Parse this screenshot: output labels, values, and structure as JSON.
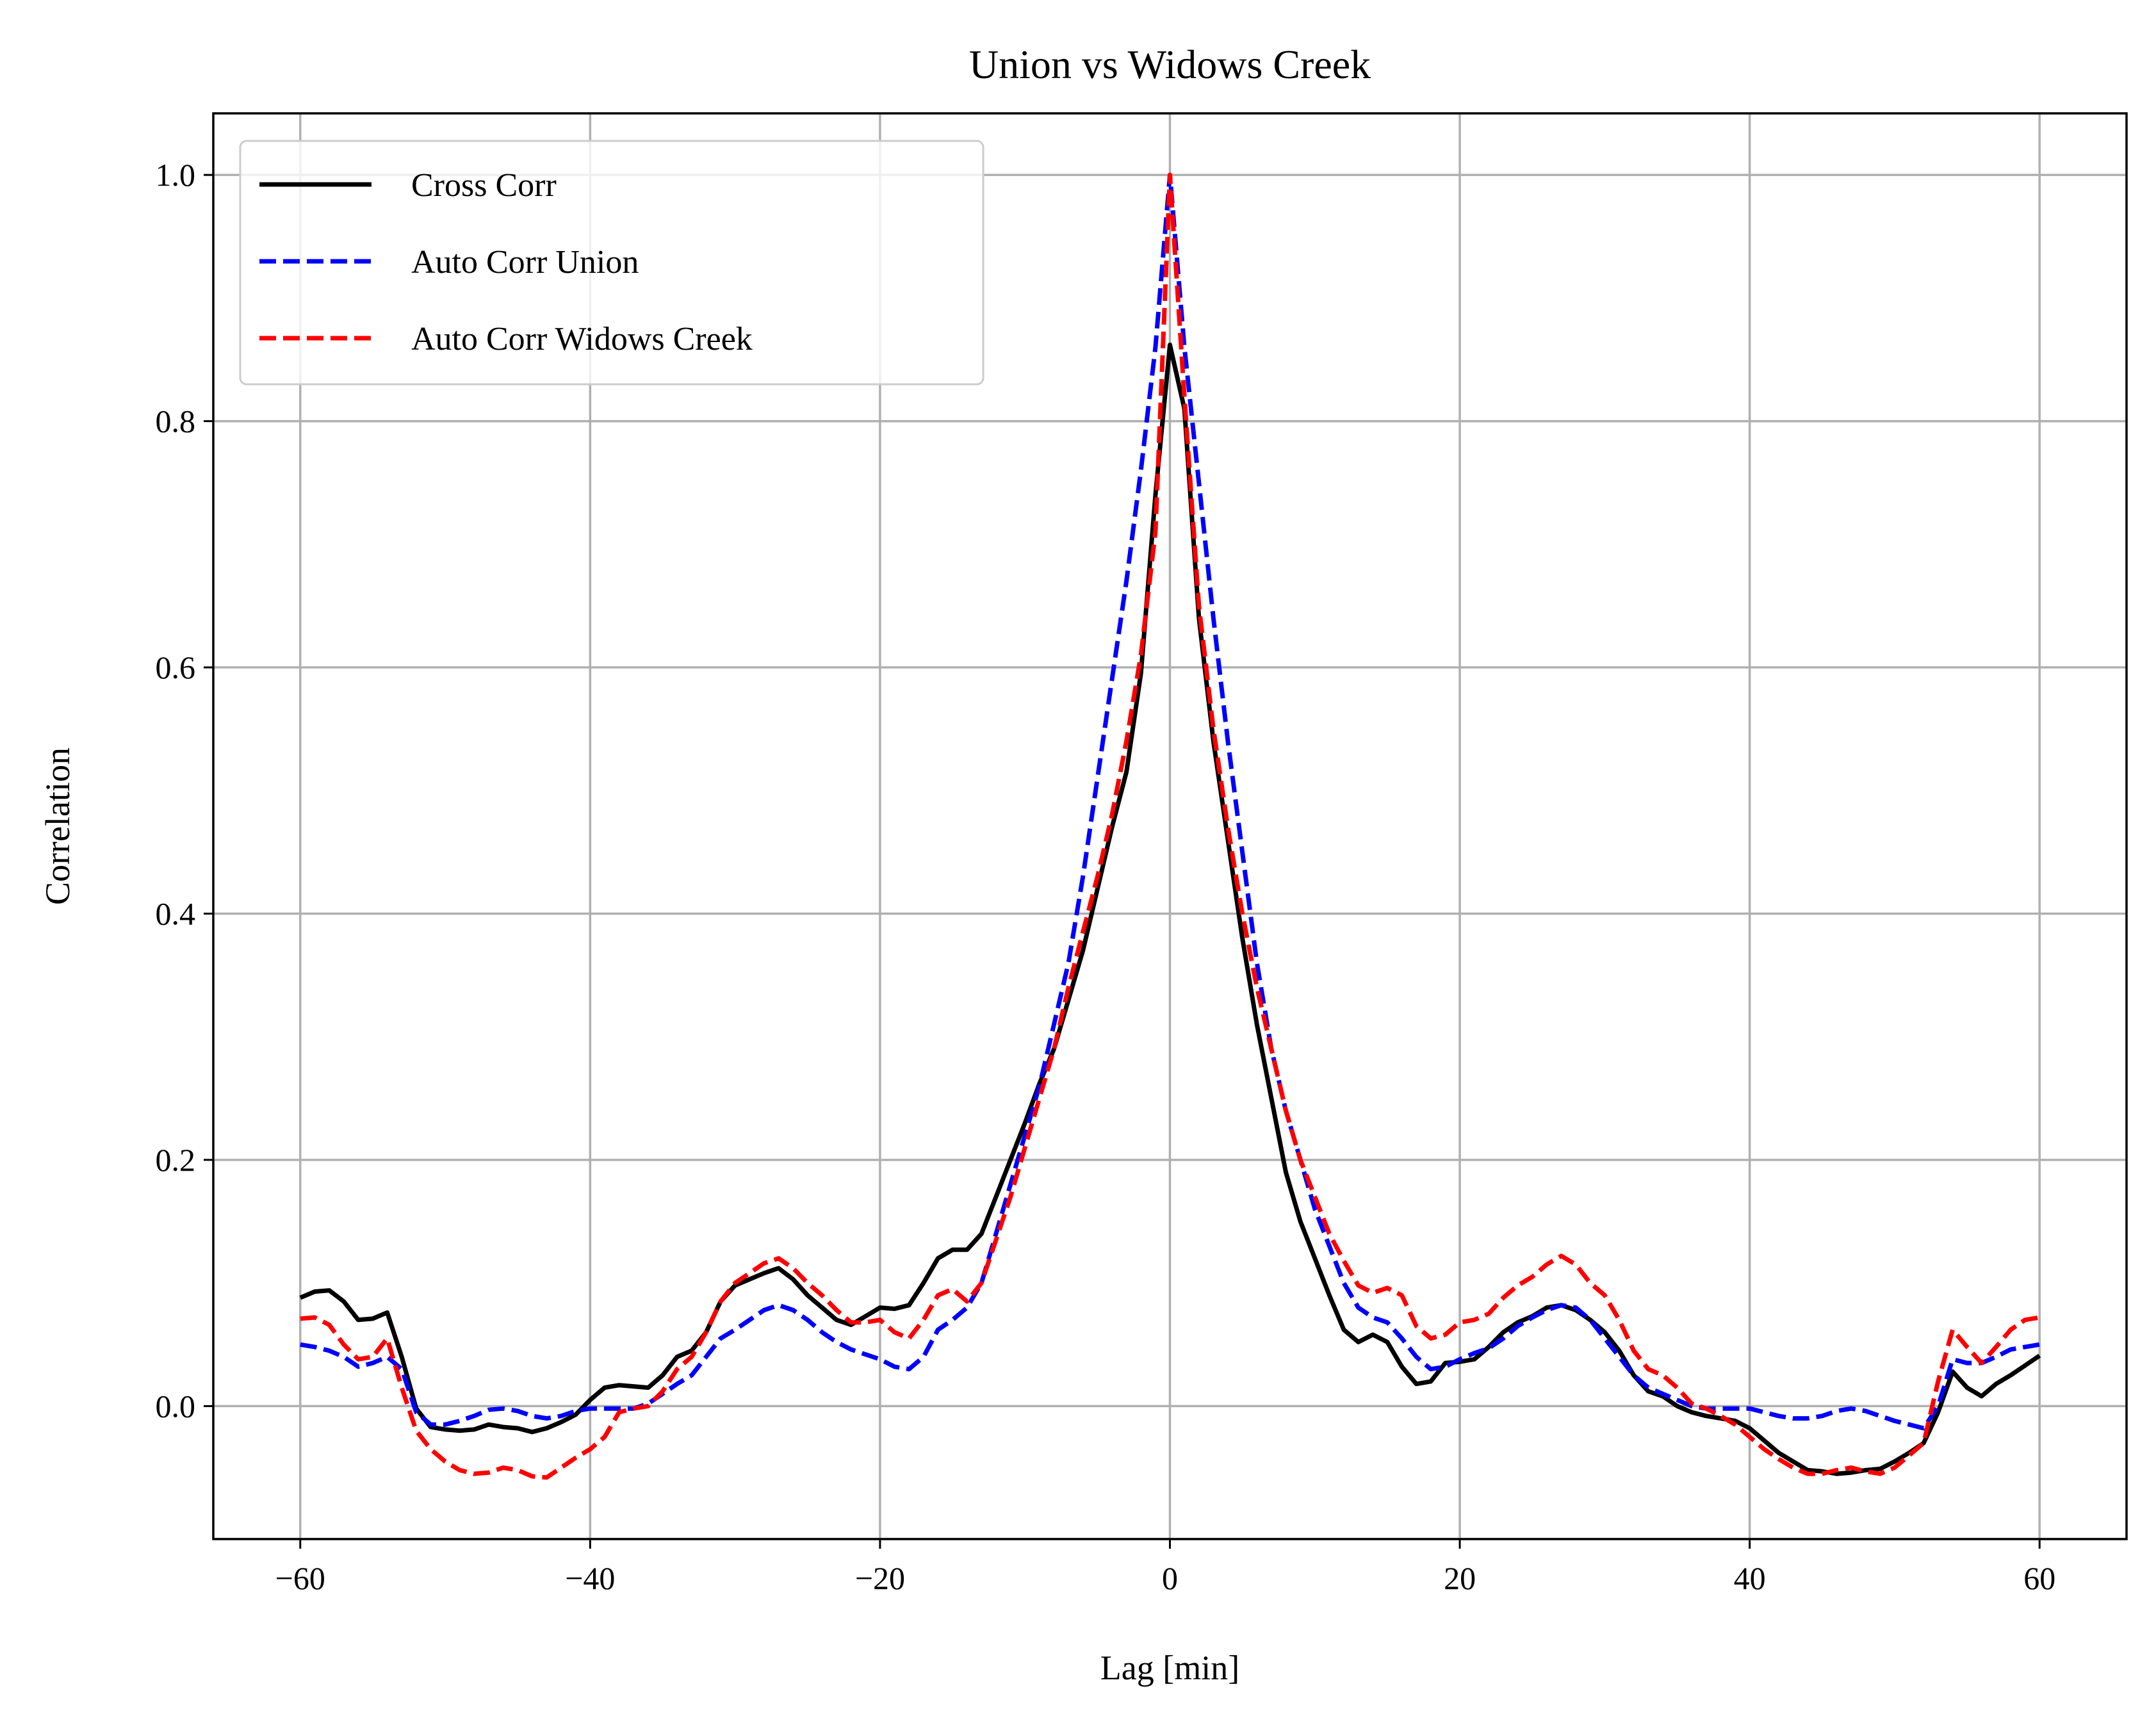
{
  "chart_data": {
    "type": "line",
    "title": "Union vs Widows Creek",
    "xlabel": "Lag [min]",
    "ylabel": "Correlation",
    "xlim": [
      -66,
      66
    ],
    "ylim": [
      -0.108,
      1.05
    ],
    "xticks": [
      -60,
      -40,
      -20,
      0,
      20,
      40,
      60
    ],
    "xtick_labels": [
      "−60",
      "−40",
      "−20",
      "0",
      "20",
      "40",
      "60"
    ],
    "yticks": [
      0.0,
      0.2,
      0.4,
      0.6,
      0.8,
      1.0
    ],
    "ytick_labels": [
      "0.0",
      "0.2",
      "0.4",
      "0.6",
      "0.8",
      "1.0"
    ],
    "grid": true,
    "legend_position": "top-left",
    "x": [
      -60,
      -59,
      -58,
      -57,
      -56,
      -55,
      -54,
      -53,
      -52,
      -51,
      -50,
      -49,
      -48,
      -47,
      -46,
      -45,
      -44,
      -43,
      -42,
      -41,
      -40,
      -39,
      -38,
      -37,
      -36,
      -35,
      -34,
      -33,
      -32,
      -31,
      -30,
      -29,
      -28,
      -27,
      -26,
      -25,
      -24,
      -23,
      -22,
      -21,
      -20,
      -19,
      -18,
      -17,
      -16,
      -15,
      -14,
      -13,
      -12,
      -11,
      -10,
      -9,
      -8,
      -7,
      -6,
      -5,
      -4,
      -3,
      -2,
      -1,
      0,
      1,
      2,
      3,
      4,
      5,
      6,
      7,
      8,
      9,
      10,
      11,
      12,
      13,
      14,
      15,
      16,
      17,
      18,
      19,
      20,
      21,
      22,
      23,
      24,
      25,
      26,
      27,
      28,
      29,
      30,
      31,
      32,
      33,
      34,
      35,
      36,
      37,
      38,
      39,
      40,
      41,
      42,
      43,
      44,
      45,
      46,
      47,
      48,
      49,
      50,
      51,
      52,
      53,
      54,
      55,
      56,
      57,
      58,
      59,
      60
    ],
    "series": [
      {
        "name": "Cross Corr",
        "color": "#000000",
        "dash": "solid",
        "values": [
          0.088,
          0.093,
          0.094,
          0.085,
          0.07,
          0.071,
          0.076,
          0.04,
          -0.002,
          -0.017,
          -0.019,
          -0.02,
          -0.019,
          -0.015,
          -0.017,
          -0.018,
          -0.021,
          -0.018,
          -0.013,
          -0.007,
          0.005,
          0.015,
          0.017,
          0.016,
          0.015,
          0.025,
          0.04,
          0.045,
          0.06,
          0.085,
          0.098,
          0.103,
          0.108,
          0.112,
          0.103,
          0.09,
          0.08,
          0.07,
          0.066,
          0.073,
          0.08,
          0.079,
          0.082,
          0.1,
          0.12,
          0.127,
          0.127,
          0.14,
          0.17,
          0.2,
          0.23,
          0.262,
          0.29,
          0.33,
          0.37,
          0.42,
          0.47,
          0.515,
          0.595,
          0.74,
          0.862,
          0.81,
          0.64,
          0.54,
          0.46,
          0.38,
          0.31,
          0.25,
          0.19,
          0.15,
          0.12,
          0.09,
          0.062,
          0.052,
          0.058,
          0.052,
          0.032,
          0.018,
          0.02,
          0.035,
          0.036,
          0.038,
          0.048,
          0.06,
          0.068,
          0.073,
          0.08,
          0.082,
          0.078,
          0.07,
          0.06,
          0.045,
          0.025,
          0.012,
          0.008,
          0.0,
          -0.005,
          -0.008,
          -0.01,
          -0.012,
          -0.018,
          -0.028,
          -0.038,
          -0.045,
          -0.052,
          -0.053,
          -0.055,
          -0.054,
          -0.052,
          -0.051,
          -0.045,
          -0.038,
          -0.03,
          -0.005,
          0.028,
          0.015,
          0.008,
          0.018,
          0.025,
          0.033,
          0.041
        ]
      },
      {
        "name": "Auto Corr Union",
        "color": "#0000ff",
        "dash": "dashed",
        "values": [
          0.05,
          0.048,
          0.045,
          0.04,
          0.032,
          0.035,
          0.04,
          0.03,
          -0.005,
          -0.015,
          -0.015,
          -0.012,
          -0.008,
          -0.003,
          -0.002,
          -0.004,
          -0.008,
          -0.01,
          -0.008,
          -0.004,
          -0.002,
          -0.002,
          -0.002,
          -0.002,
          0.002,
          0.01,
          0.018,
          0.025,
          0.04,
          0.055,
          0.062,
          0.07,
          0.078,
          0.082,
          0.078,
          0.07,
          0.06,
          0.052,
          0.046,
          0.042,
          0.038,
          0.032,
          0.03,
          0.04,
          0.062,
          0.07,
          0.08,
          0.1,
          0.14,
          0.18,
          0.22,
          0.26,
          0.31,
          0.36,
          0.43,
          0.51,
          0.59,
          0.67,
          0.76,
          0.86,
          1.0,
          0.86,
          0.75,
          0.64,
          0.54,
          0.45,
          0.36,
          0.29,
          0.24,
          0.2,
          0.16,
          0.13,
          0.1,
          0.08,
          0.072,
          0.068,
          0.055,
          0.04,
          0.03,
          0.032,
          0.038,
          0.043,
          0.047,
          0.055,
          0.065,
          0.072,
          0.078,
          0.082,
          0.08,
          0.07,
          0.055,
          0.04,
          0.025,
          0.015,
          0.01,
          0.005,
          0.0,
          -0.002,
          -0.002,
          -0.002,
          -0.002,
          -0.005,
          -0.008,
          -0.01,
          -0.01,
          -0.008,
          -0.004,
          -0.002,
          -0.004,
          -0.008,
          -0.012,
          -0.015,
          -0.018,
          0.0,
          0.038,
          0.035,
          0.035,
          0.04,
          0.046,
          0.048,
          0.05
        ]
      },
      {
        "name": "Auto Corr Widows Creek",
        "color": "#ff0000",
        "dash": "dashed",
        "values": [
          0.071,
          0.072,
          0.066,
          0.05,
          0.038,
          0.04,
          0.055,
          0.015,
          -0.02,
          -0.035,
          -0.045,
          -0.052,
          -0.055,
          -0.054,
          -0.05,
          -0.052,
          -0.057,
          -0.058,
          -0.05,
          -0.042,
          -0.035,
          -0.025,
          -0.005,
          -0.002,
          0.0,
          0.012,
          0.03,
          0.04,
          0.06,
          0.085,
          0.1,
          0.108,
          0.116,
          0.12,
          0.112,
          0.1,
          0.09,
          0.078,
          0.068,
          0.068,
          0.07,
          0.06,
          0.055,
          0.07,
          0.09,
          0.095,
          0.085,
          0.1,
          0.135,
          0.17,
          0.21,
          0.25,
          0.29,
          0.34,
          0.385,
          0.43,
          0.48,
          0.54,
          0.61,
          0.71,
          1.0,
          0.82,
          0.65,
          0.55,
          0.47,
          0.4,
          0.34,
          0.29,
          0.24,
          0.2,
          0.17,
          0.14,
          0.118,
          0.098,
          0.092,
          0.096,
          0.09,
          0.065,
          0.055,
          0.058,
          0.068,
          0.07,
          0.075,
          0.088,
          0.098,
          0.105,
          0.115,
          0.122,
          0.115,
          0.1,
          0.09,
          0.07,
          0.045,
          0.03,
          0.025,
          0.015,
          0.002,
          -0.002,
          -0.008,
          -0.015,
          -0.025,
          -0.035,
          -0.043,
          -0.05,
          -0.055,
          -0.055,
          -0.052,
          -0.05,
          -0.053,
          -0.055,
          -0.05,
          -0.04,
          -0.03,
          0.02,
          0.062,
          0.048,
          0.035,
          0.048,
          0.062,
          0.07,
          0.072
        ]
      }
    ]
  }
}
